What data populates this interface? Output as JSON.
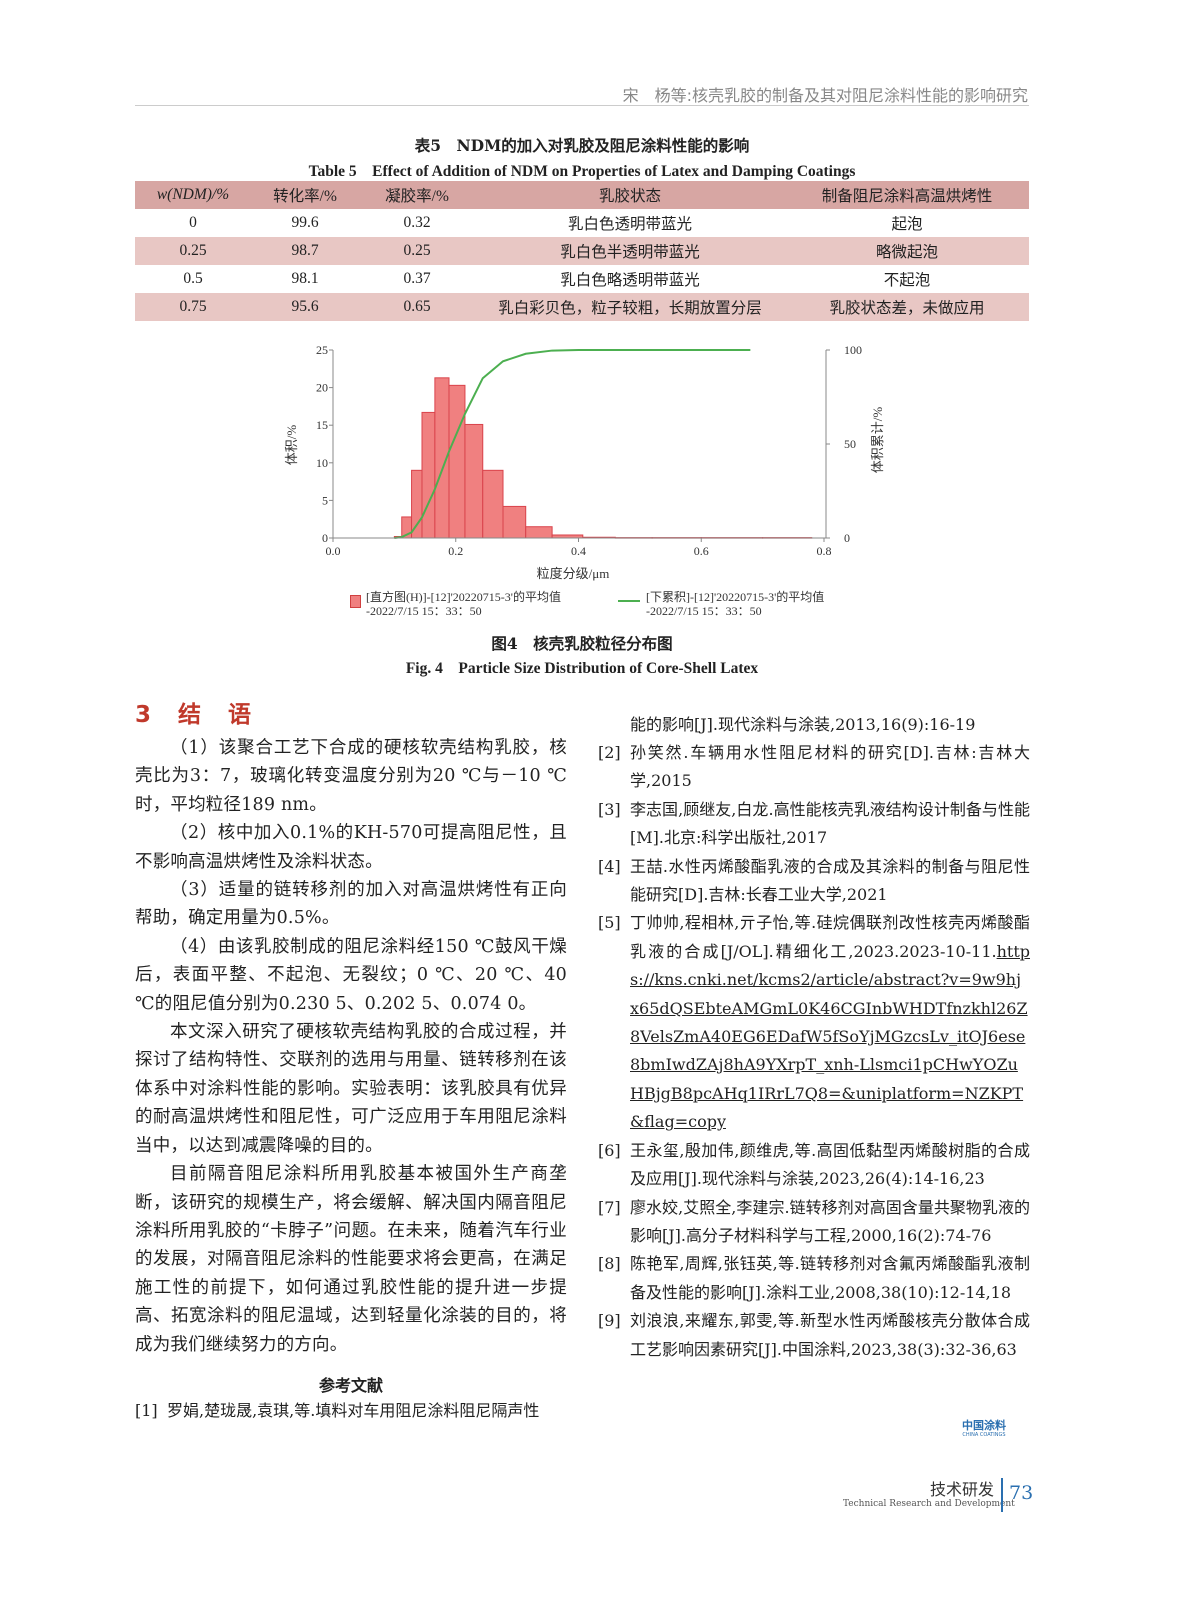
{
  "running_head": "宋　杨等:核壳乳胶的制备及其对阻尼涂料性能的影响研究",
  "table": {
    "title_cn": "表5　NDM的加入对乳胶及阻尼涂料性能的影响",
    "title_en": "Table 5　Effect of Addition of NDM on Properties of Latex and Damping Coatings",
    "headers": [
      "w(NDM)/%",
      "转化率/%",
      "凝胶率/%",
      "乳胶状态",
      "制备阻尼涂料高温烘烤性"
    ],
    "rows": [
      [
        "0",
        "99.6",
        "0.32",
        "乳白色透明带蓝光",
        "起泡"
      ],
      [
        "0.25",
        "98.7",
        "0.25",
        "乳白色半透明带蓝光",
        "略微起泡"
      ],
      [
        "0.5",
        "98.1",
        "0.37",
        "乳白色略透明带蓝光",
        "不起泡"
      ],
      [
        "0.75",
        "95.6",
        "0.65",
        "乳白彩贝色，粒子较粗，长期放置分层",
        "乳胶状态差，未做应用"
      ]
    ],
    "colors": {
      "header": "#d7a6a3",
      "alt_row": "#e8c7c4"
    }
  },
  "chart_data": {
    "type": "bar",
    "xlabel": "粒度分级/μm",
    "ylabel": "体积/%",
    "y2label": "体积累计/%",
    "xlim": [
      0,
      0.8
    ],
    "ylim": [
      0,
      25
    ],
    "y2lim": [
      0,
      100
    ],
    "xticks": [
      "0.0",
      "0.2",
      "0.4",
      "0.6",
      "0.8"
    ],
    "yticks": [
      "0",
      "5",
      "10",
      "15",
      "20",
      "25"
    ],
    "y2ticks": [
      "0",
      "50",
      "100"
    ],
    "grid": false,
    "legend_placement": "bottom",
    "series": [
      {
        "name": "[直方图(H)]-[12]'20220715-3'的平均值-2022/7/15 15：33：50",
        "type": "histogram",
        "color": "#f08080",
        "bin_edges": [
          0.1,
          0.112,
          0.128,
          0.145,
          0.166,
          0.189,
          0.215,
          0.244,
          0.277,
          0.314,
          0.357,
          0.407,
          0.46,
          0.52,
          0.6,
          0.7,
          0.78
        ],
        "values": [
          0.2,
          2.8,
          9.0,
          16.7,
          21.3,
          20.3,
          15.1,
          9.0,
          4.2,
          1.5,
          0.4,
          0.1,
          0.05,
          0.05,
          0.05,
          0.05
        ]
      },
      {
        "name": "[下累积]-[12]'20220715-3'的平均值-2022/7/15 15：33：50",
        "type": "line",
        "color": "#4caf50",
        "axis": "right",
        "x": [
          0.1,
          0.112,
          0.128,
          0.145,
          0.166,
          0.189,
          0.215,
          0.244,
          0.277,
          0.314,
          0.357,
          0.4,
          0.68
        ],
        "y": [
          0,
          0.5,
          3,
          11,
          26,
          46,
          66,
          85,
          94,
          98,
          99.7,
          100,
          100
        ]
      }
    ]
  },
  "legend": {
    "hist_line1": "[直方图(H)]-[12]'20220715-3'的平均值",
    "hist_line2": "-2022/7/15 15：33：50",
    "cum_line1": "[下累积]-[12]'20220715-3'的平均值",
    "cum_line2": "-2022/7/15 15：33：50"
  },
  "figure": {
    "caption_cn": "图4　核壳乳胶粒径分布图",
    "caption_en": "Fig. 4　Particle Size Distribution of Core-Shell Latex"
  },
  "section": {
    "title": "3　结　语",
    "paragraphs": [
      "（1）该聚合工艺下合成的硬核软壳结构乳胶，核壳比为3：7，玻璃化转变温度分别为20 ℃与－10 ℃时，平均粒径189 nm。",
      "（2）核中加入0.1%的KH-570可提高阻尼性，且不影响高温烘烤性及涂料状态。",
      "（3）适量的链转移剂的加入对高温烘烤性有正向帮助，确定用量为0.5%。",
      "（4）由该乳胶制成的阻尼涂料经150 ℃鼓风干燥后，表面平整、不起泡、无裂纹；0 ℃、20 ℃、40 ℃的阻尼值分别为0.230 5、0.202 5、0.074 0。",
      "本文深入研究了硬核软壳结构乳胶的合成过程，并探讨了结构特性、交联剂的选用与用量、链转移剂在该体系中对涂料性能的影响。实验表明：该乳胶具有优异的耐高温烘烤性和阻尼性，可广泛应用于车用阻尼涂料当中，以达到减震降噪的目的。",
      "目前隔音阻尼涂料所用乳胶基本被国外生产商垄断，该研究的规模生产，将会缓解、解决国内隔音阻尼涂料所用乳胶的“卡脖子”问题。在未来，随着汽车行业的发展，对隔音阻尼涂料的性能要求将会更高，在满足施工性的前提下，如何通过乳胶性能的提升进一步提高、拓宽涂料的阻尼温域，达到轻量化涂装的目的，将成为我们继续努力的方向。"
    ]
  },
  "references": {
    "title": "参考文献",
    "items": [
      {
        "n": "[1]",
        "text": "罗娟,楚珑晟,袁琪,等.填料对车用阻尼涂料阻尼隔声性能的影响[J].现代涂料与涂装,2013,16(9):16-19"
      },
      {
        "n": "[2]",
        "text": "孙笑然.车辆用水性阻尼材料的研究[D].吉林:吉林大学,2015"
      },
      {
        "n": "[3]",
        "text": "李志国,顾继友,白龙.高性能核壳乳液结构设计制备与性能[M].北京:科学出版社,2017"
      },
      {
        "n": "[4]",
        "text": "王喆.水性丙烯酸酯乳液的合成及其涂料的制备与阻尼性能研究[D].吉林:长春工业大学,2021"
      },
      {
        "n": "[5]",
        "text": "丁帅帅,程相林,亓子怡,等.硅烷偶联剂改性核壳丙烯酸酯乳液的合成[J/OL].精细化工,2023.2023-10-11.",
        "link": "https://kns.cnki.net/kcms2/article/abstract?v=9w9hjx65dQSEbteAMGmL0K46CGInbWHDTfnzkhl26Z8VelsZmA40EG6EDafW5fSoYjMGzcsLv_itOJ6ese8bmIwdZAj8hA9YXrpT_xnh-Llsmci1pCHwYOZuHBjgB8pcAHq1IRrL7Q8=&uniplatform=NZKPT&flag=copy"
      },
      {
        "n": "[6]",
        "text": "王永玺,殷加伟,颜维虎,等.高固低黏型丙烯酸树脂的合成及应用[J].现代涂料与涂装,2023,26(4):14-16,23"
      },
      {
        "n": "[7]",
        "text": "廖水姣,艾照全,李建宗.链转移剂对高固含量共聚物乳液的影响[J].高分子材料科学与工程,2000,16(2):74-76"
      },
      {
        "n": "[8]",
        "text": "陈艳军,周辉,张钰英,等.链转移剂对含氟丙烯酸酯乳液制备及性能的影响[J].涂料工业,2008,38(10):12-14,18"
      },
      {
        "n": "[9]",
        "text": "刘浪浪,来耀东,郭雯,等.新型水性丙烯酸核壳分散体合成工艺影响因素研究[J].中国涂料,2023,38(3):32-36,63"
      }
    ]
  },
  "footer": {
    "logo": "中国涂料",
    "logo_en": "CHINA COATINGS",
    "section_cn": "技术研发",
    "section_en": "Technical Research and Development",
    "page": "73"
  }
}
